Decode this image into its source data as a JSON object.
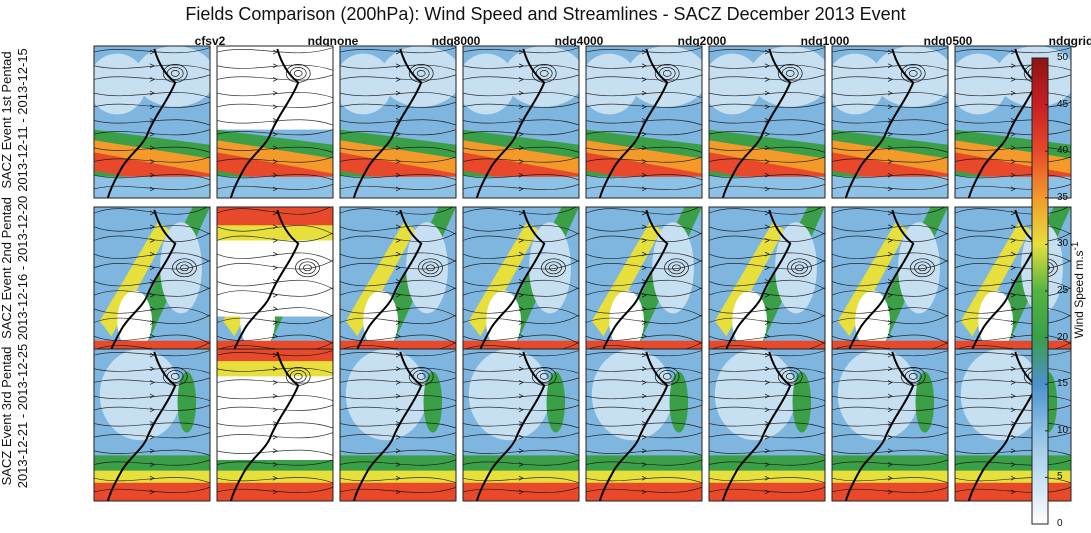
{
  "title": "Fields Comparison (200hPa): Wind Speed and Streamlines - SACZ December 2013 Event",
  "columns": [
    "cfsv2",
    "ndgnone",
    "ndg8000",
    "ndg4000",
    "ndg2000",
    "ndg1000",
    "ndg0500",
    "ndggrid"
  ],
  "rows": [
    {
      "line1": "SACZ Event 1st Pentad",
      "line2": "2013-12-11 - 2013-12-15"
    },
    {
      "line1": "SACZ Event 2nd Pentad",
      "line2": "2013-12-16 - 2013-12-20"
    },
    {
      "line1": "SACZ Event 3rd Pentad",
      "line2": "2013-12-21 - 2013-12-25"
    }
  ],
  "colorbar": {
    "label_main": "Wind Speed m.s",
    "label_sup": "-1",
    "ticks": [
      0,
      5,
      10,
      15,
      20,
      25,
      30,
      35,
      40,
      45,
      50
    ],
    "range": [
      0,
      50
    ],
    "colors": [
      "#ffffff",
      "#c6dff1",
      "#8dc1e6",
      "#4d91cf",
      "#3a9f47",
      "#52b542",
      "#e6df3c",
      "#f39a2b",
      "#e7492a",
      "#c81f22",
      "#8f1515"
    ]
  }
}
